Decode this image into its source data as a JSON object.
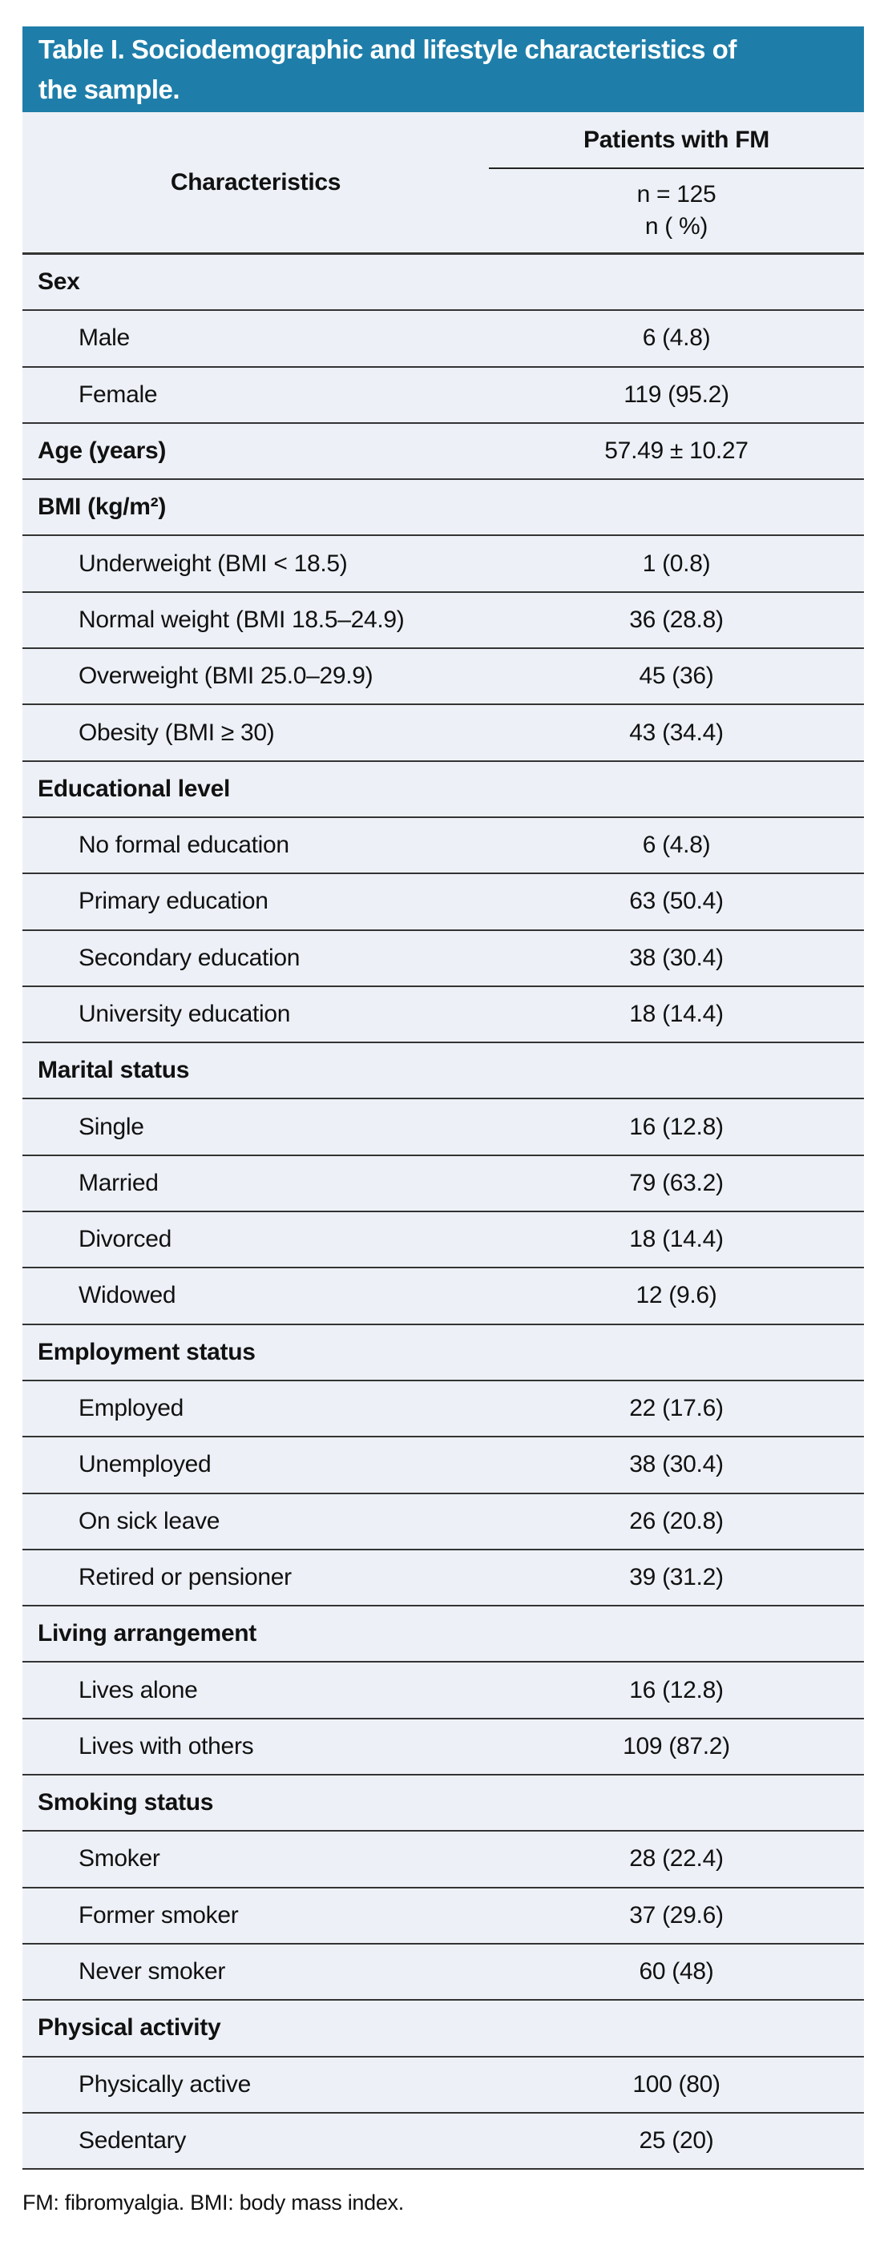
{
  "table": {
    "title_lines": [
      "Table I. Sociodemographic and lifestyle characteristics of",
      "the sample."
    ],
    "header": {
      "characteristics_label": "Characteristics",
      "group_label": "Patients with FM",
      "sub_lines": [
        "n = 125",
        "n ( %)"
      ]
    },
    "rows": [
      {
        "style": "section",
        "label": "Sex",
        "value": ""
      },
      {
        "style": "item",
        "label": "Male",
        "value": "6 (4.8)"
      },
      {
        "style": "item",
        "label": "Female",
        "value": "119 (95.2)"
      },
      {
        "style": "section",
        "label": "Age (years)",
        "value": "57.49 ± 10.27"
      },
      {
        "style": "section",
        "label": "BMI (kg/m²)",
        "value": ""
      },
      {
        "style": "item",
        "label": "Underweight (BMI < 18.5)",
        "value": "1 (0.8)"
      },
      {
        "style": "item",
        "label": "Normal weight (BMI 18.5–24.9)",
        "value": "36 (28.8)"
      },
      {
        "style": "item",
        "label": "Overweight (BMI 25.0–29.9)",
        "value": "45 (36)"
      },
      {
        "style": "item",
        "label": "Obesity (BMI ≥ 30)",
        "value": "43 (34.4)"
      },
      {
        "style": "section",
        "label": "Educational level",
        "value": ""
      },
      {
        "style": "item",
        "label": "No formal education",
        "value": "6 (4.8)"
      },
      {
        "style": "item",
        "label": "Primary education",
        "value": "63 (50.4)"
      },
      {
        "style": "item",
        "label": "Secondary education",
        "value": "38 (30.4)"
      },
      {
        "style": "item",
        "label": "University education",
        "value": "18 (14.4)"
      },
      {
        "style": "section",
        "label": "Marital status",
        "value": ""
      },
      {
        "style": "item",
        "label": "Single",
        "value": "16 (12.8)"
      },
      {
        "style": "item",
        "label": "Married",
        "value": "79 (63.2)"
      },
      {
        "style": "item",
        "label": "Divorced",
        "value": "18 (14.4)"
      },
      {
        "style": "item",
        "label": "Widowed",
        "value": "12 (9.6)"
      },
      {
        "style": "section",
        "label": "Employment status",
        "value": ""
      },
      {
        "style": "item",
        "label": "Employed",
        "value": "22 (17.6)"
      },
      {
        "style": "item",
        "label": "Unemployed",
        "value": "38 (30.4)"
      },
      {
        "style": "item",
        "label": "On sick leave",
        "value": "26 (20.8)"
      },
      {
        "style": "item",
        "label": "Retired or pensioner",
        "value": "39 (31.2)"
      },
      {
        "style": "section",
        "label": "Living arrangement",
        "value": ""
      },
      {
        "style": "item",
        "label": "Lives alone",
        "value": "16 (12.8)"
      },
      {
        "style": "item",
        "label": "Lives with others",
        "value": "109 (87.2)"
      },
      {
        "style": "section",
        "label": "Smoking status",
        "value": ""
      },
      {
        "style": "item",
        "label": "Smoker",
        "value": "28 (22.4)"
      },
      {
        "style": "item",
        "label": "Former smoker",
        "value": "37 (29.6)"
      },
      {
        "style": "item",
        "label": "Never smoker",
        "value": "60 (48)"
      },
      {
        "style": "section",
        "label": "Physical activity",
        "value": ""
      },
      {
        "style": "item",
        "label": "Physically active",
        "value": "100 (80)"
      },
      {
        "style": "item",
        "label": "Sedentary",
        "value": "25 (20)"
      }
    ],
    "footnote": "FM: fibromyalgia. BMI: body mass index.",
    "colors": {
      "header_bg": "#1e7ea9",
      "row_bg": "#edf1f7",
      "border": "#333333",
      "title_text": "#ffffff",
      "body_text": "#111111"
    }
  }
}
